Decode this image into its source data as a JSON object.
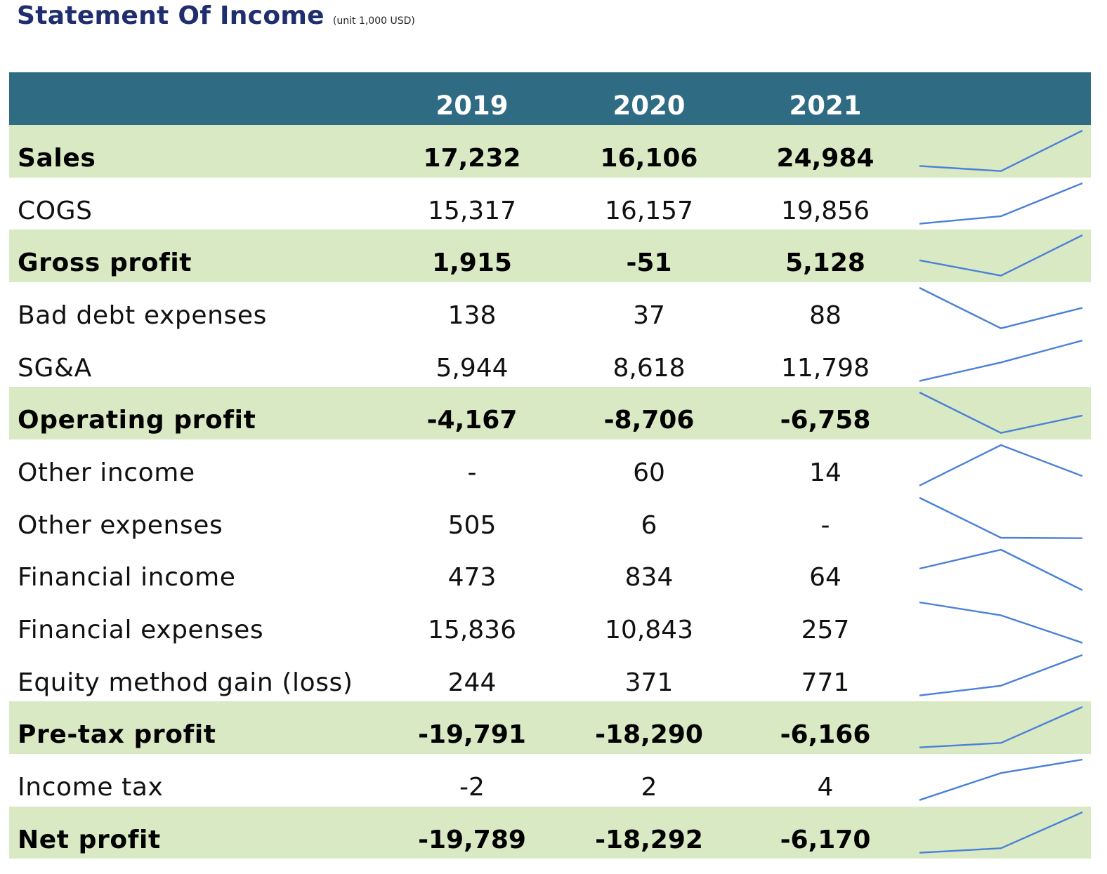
{
  "header": {
    "title": "Statement Of Income",
    "unit": "(unit 1,000 USD)"
  },
  "colors": {
    "title": "#1f2e6e",
    "header_bg": "#2f6c84",
    "highlight_bg": "#d9e9c3",
    "sparkline": "#4a80d8"
  },
  "table": {
    "years": [
      "2019",
      "2020",
      "2021"
    ],
    "rows": [
      {
        "label": "Sales",
        "highlight": true,
        "display": [
          "17,232",
          "16,106",
          "24,984"
        ],
        "values": [
          17232,
          16106,
          24984
        ]
      },
      {
        "label": "COGS",
        "highlight": false,
        "display": [
          "15,317",
          "16,157",
          "19,856"
        ],
        "values": [
          15317,
          16157,
          19856
        ]
      },
      {
        "label": "Gross profit",
        "highlight": true,
        "display": [
          "1,915",
          "-51",
          "5,128"
        ],
        "values": [
          1915,
          -51,
          5128
        ]
      },
      {
        "label": "Bad debt expenses",
        "highlight": false,
        "display": [
          "138",
          "37",
          "88"
        ],
        "values": [
          138,
          37,
          88
        ]
      },
      {
        "label": "SG&A",
        "highlight": false,
        "display": [
          "5,944",
          "8,618",
          "11,798"
        ],
        "values": [
          5944,
          8618,
          11798
        ]
      },
      {
        "label": "Operating profit",
        "highlight": true,
        "display": [
          "-4,167",
          "-8,706",
          "-6,758"
        ],
        "values": [
          -4167,
          -8706,
          -6758
        ]
      },
      {
        "label": "Other income",
        "highlight": false,
        "display": [
          "-",
          "60",
          "14"
        ],
        "values": [
          null,
          60,
          14
        ]
      },
      {
        "label": "Other expenses",
        "highlight": false,
        "display": [
          "505",
          "6",
          "-"
        ],
        "values": [
          505,
          6,
          null
        ]
      },
      {
        "label": "Financial income",
        "highlight": false,
        "display": [
          "473",
          "834",
          "64"
        ],
        "values": [
          473,
          834,
          64
        ]
      },
      {
        "label": "Financial expenses",
        "highlight": false,
        "display": [
          "15,836",
          "10,843",
          "257"
        ],
        "values": [
          15836,
          10843,
          257
        ]
      },
      {
        "label": "Equity method gain (loss)",
        "highlight": false,
        "display": [
          "244",
          "371",
          "771"
        ],
        "values": [
          244,
          371,
          771
        ]
      },
      {
        "label": "Pre-tax profit",
        "highlight": true,
        "display": [
          "-19,791",
          "-18,290",
          "-6,166"
        ],
        "values": [
          -19791,
          -18290,
          -6166
        ]
      },
      {
        "label": "Income tax",
        "highlight": false,
        "display": [
          "-2",
          "2",
          "4"
        ],
        "values": [
          -2,
          2,
          4
        ]
      },
      {
        "label": "Net profit",
        "highlight": true,
        "display": [
          "-19,789",
          "-18,292",
          "-6,170"
        ],
        "values": [
          -19789,
          -18292,
          -6170
        ]
      }
    ]
  }
}
